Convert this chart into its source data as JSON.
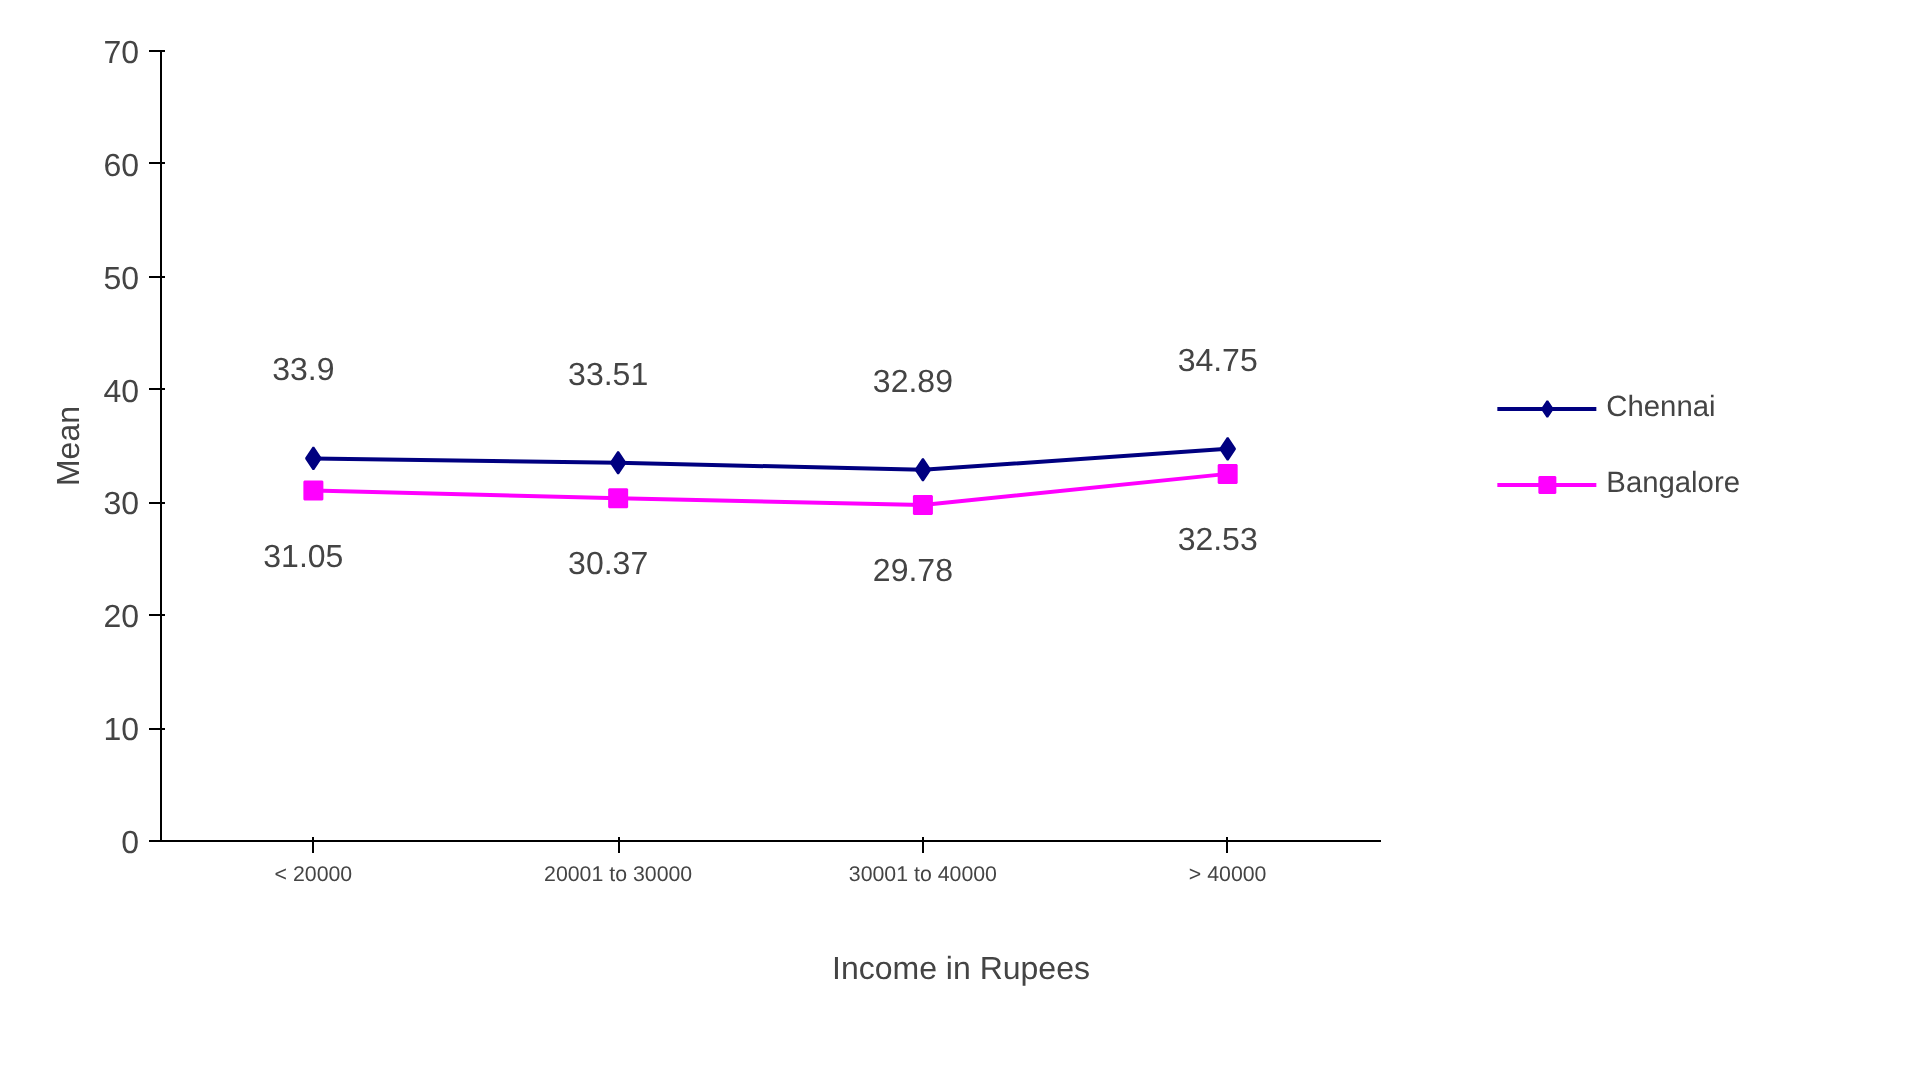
{
  "chart_data": {
    "type": "line",
    "xlabel": "Income in Rupees",
    "ylabel": "Mean",
    "categories": [
      "< 20000",
      "20001 to 30000",
      "30001 to 40000",
      "> 40000"
    ],
    "series": [
      {
        "name": "Chennai",
        "color": "#000080",
        "marker": "diamond",
        "values": [
          33.9,
          33.51,
          32.89,
          34.75
        ]
      },
      {
        "name": "Bangalore",
        "color": "#ff00ff",
        "marker": "square",
        "values": [
          31.05,
          30.37,
          29.78,
          32.53
        ]
      }
    ],
    "ylim": [
      0,
      70
    ],
    "yticks": [
      0,
      10,
      20,
      30,
      40,
      50,
      60,
      70
    ],
    "grid": false,
    "legend": "right",
    "data_labels": true
  }
}
